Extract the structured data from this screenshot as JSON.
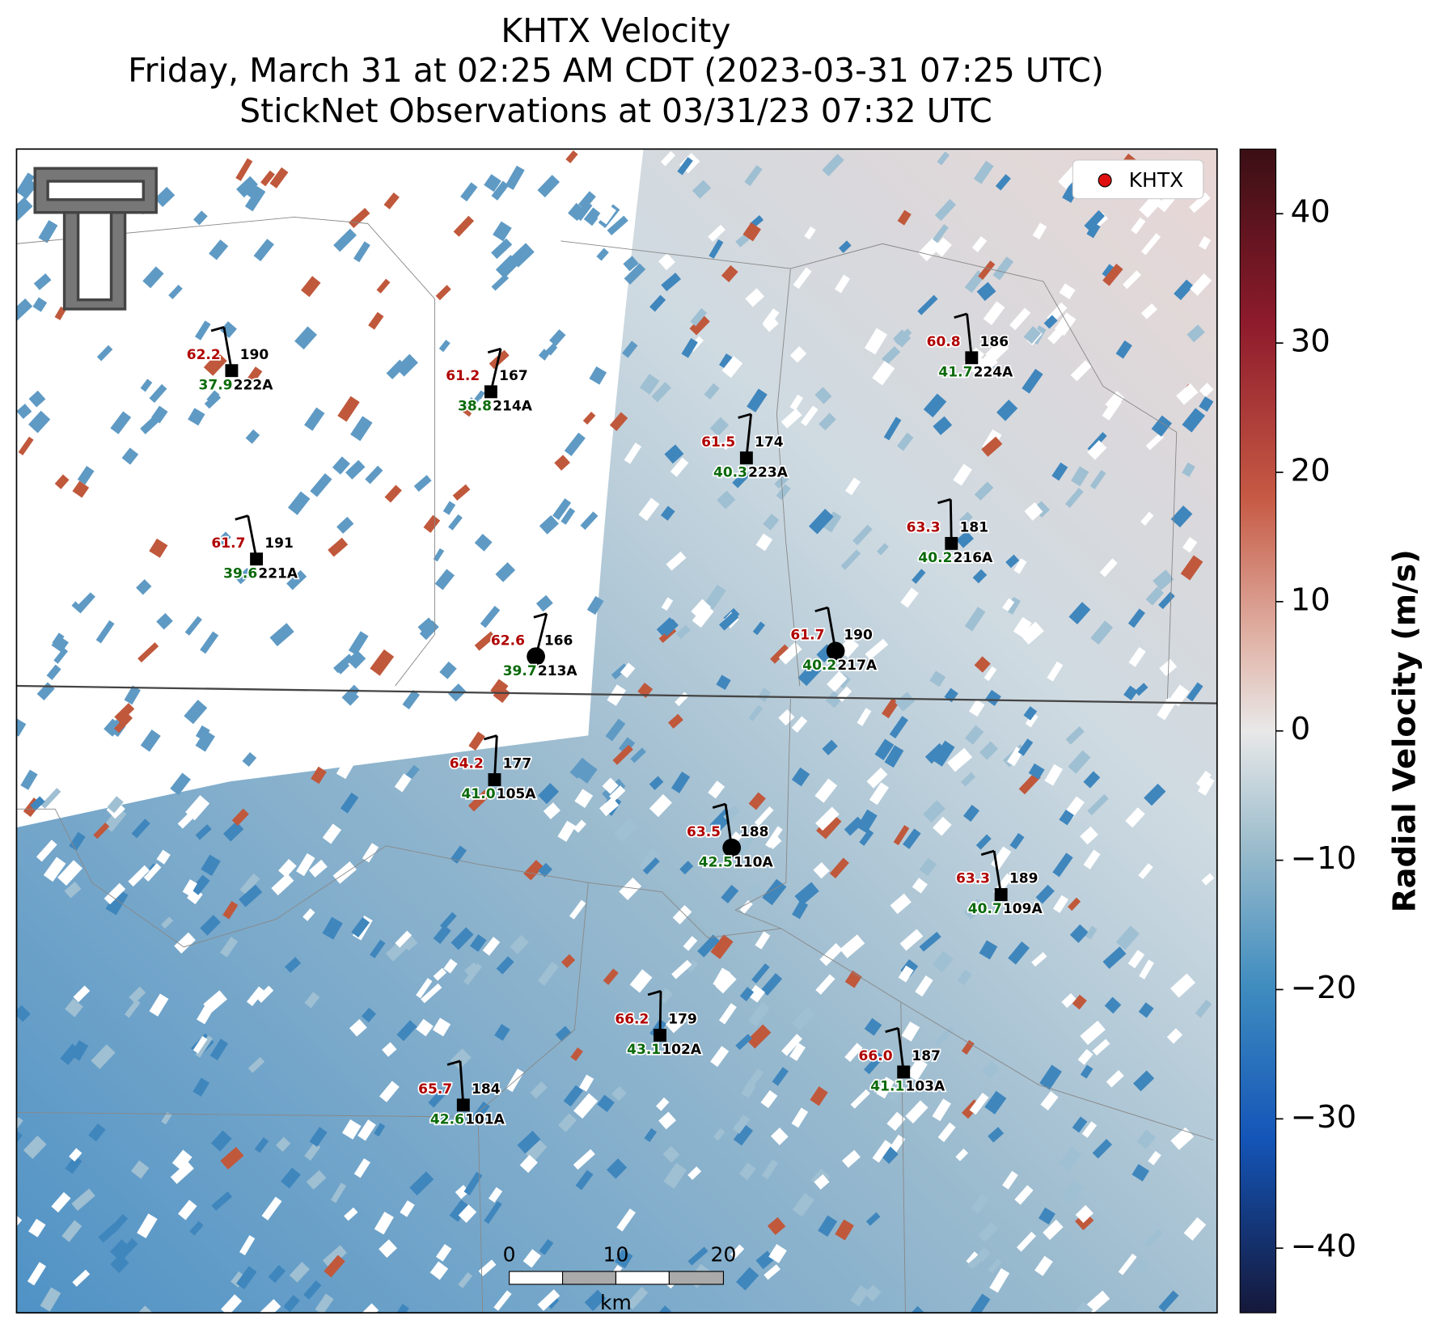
{
  "header": {
    "title": [
      "KHTX Velocity",
      "Friday, March 31 at 02:25 AM CDT (2023-03-31 07:25 UTC)",
      "StickNet Observations at 03/31/23 07:32 UTC"
    ]
  },
  "legend": {
    "label": "KHTX"
  },
  "stations": [
    {
      "id": "222A",
      "red": "62.2",
      "dir": "190",
      "green": "37.9"
    },
    {
      "id": "214A",
      "red": "61.2",
      "dir": "167",
      "green": "38.8"
    },
    {
      "id": "224A",
      "red": "60.8",
      "dir": "186",
      "green": "41.7"
    },
    {
      "id": "223A",
      "red": "61.5",
      "dir": "174",
      "green": "40.3"
    },
    {
      "id": "221A",
      "red": "61.7",
      "dir": "191",
      "green": "39.6"
    },
    {
      "id": "216A",
      "red": "63.3",
      "dir": "181",
      "green": "40.2"
    },
    {
      "id": "213A",
      "red": "62.6",
      "dir": "166",
      "green": "39.7"
    },
    {
      "id": "217A",
      "red": "61.7",
      "dir": "190",
      "green": "40.2"
    },
    {
      "id": "105A",
      "red": "64.2",
      "dir": "177",
      "green": "41.0"
    },
    {
      "id": "110A",
      "red": "63.5",
      "dir": "188",
      "green": "42.5"
    },
    {
      "id": "109A",
      "red": "63.3",
      "dir": "189",
      "green": "40.7"
    },
    {
      "id": "102A",
      "red": "66.2",
      "dir": "179",
      "green": "43.1"
    },
    {
      "id": "103A",
      "red": "66.0",
      "dir": "187",
      "green": "41.1"
    },
    {
      "id": "101A",
      "red": "65.7",
      "dir": "184",
      "green": "42.6"
    }
  ],
  "scale_bar": {
    "labels": [
      "0",
      "10",
      "20"
    ],
    "unit": "km"
  },
  "colorbar": {
    "label": "Radial Velocity (m/s)",
    "lim": [
      -45,
      45
    ],
    "ticks": [
      40,
      30,
      20,
      10,
      0,
      {
        "value": -10,
        "label": "−10"
      },
      {
        "value": -20,
        "label": "−20"
      },
      {
        "value": -30,
        "label": "−30"
      },
      {
        "value": -40,
        "label": "−40"
      }
    ]
  }
}
